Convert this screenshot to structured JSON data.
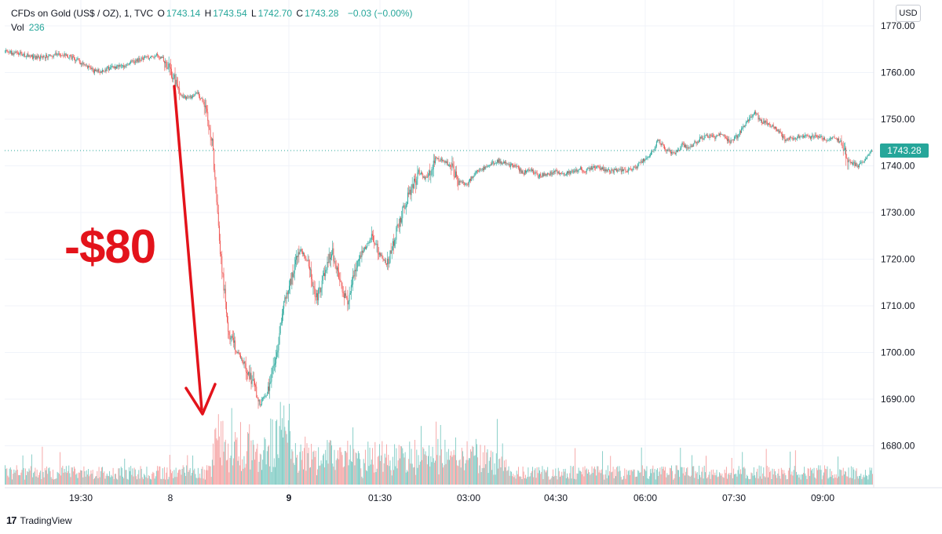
{
  "header": {
    "symbol_label": "CFDs on Gold (US$ / OZ), 1, TVC",
    "open_label": "O",
    "open_value": "1743.14",
    "high_label": "H",
    "high_value": "1743.54",
    "low_label": "L",
    "low_value": "1742.70",
    "close_label": "C",
    "close_value": "1743.28",
    "change": "−0.03 (−0.00%)",
    "volume_label": "Vol",
    "volume_value": "236"
  },
  "currency_button": "USD",
  "last_price_tag": "1743.28",
  "annotation": "-$80",
  "branding": {
    "name": "TradingView",
    "mark": "17"
  },
  "colors": {
    "up": "#26a69a",
    "down": "#ef5350",
    "vol_up": "#80cbc4",
    "vol_down": "#f5a3a3",
    "grid": "#f0f3fa",
    "annotation": "#e3131b",
    "axis_text": "#131722",
    "last_price_line": "#26a69a"
  },
  "chart_data": {
    "type": "candlestick",
    "title": "CFDs on Gold (US$ / OZ), 1, TVC",
    "timeframe": "1 minute",
    "ylabel": "USD",
    "ylim": [
      1672,
      1772
    ],
    "y_ticks": [
      1770,
      1760,
      1750,
      1740,
      1730,
      1720,
      1710,
      1700,
      1690,
      1680
    ],
    "y_tick_labels": [
      "1770.00",
      "1760.00",
      "1750.00",
      "1740.00",
      "1730.00",
      "1720.00",
      "1710.00",
      "1700.00",
      "1690.00",
      "1680.00"
    ],
    "x_tick_labels": [
      "19:30",
      "8",
      "9",
      "01:30",
      "03:00",
      "04:30",
      "06:00",
      "07:30",
      "09:00"
    ],
    "x_tick_bold": [
      false,
      false,
      true,
      false,
      false,
      false,
      false,
      false,
      false
    ],
    "x_tick_index": [
      15,
      35,
      60,
      80,
      100,
      120,
      140,
      160,
      180
    ],
    "last_price": 1743.28,
    "price_path": [
      1764.5,
      1764.2,
      1764.0,
      1763.5,
      1763.2,
      1763.5,
      1763.8,
      1763.9,
      1763.5,
      1762.8,
      1761.5,
      1760.4,
      1760.3,
      1760.9,
      1761.2,
      1761.5,
      1762.3,
      1762.8,
      1763.2,
      1763.6,
      1762.8,
      1759.5,
      1755.0,
      1754.5,
      1755.8,
      1753.5,
      1745.0,
      1722.0,
      1705.0,
      1700.5,
      1697.5,
      1694.0,
      1689.0,
      1691.5,
      1699.0,
      1710.0,
      1716.5,
      1722.0,
      1719.5,
      1711.0,
      1716.0,
      1722.0,
      1715.0,
      1710.0,
      1718.0,
      1722.0,
      1724.5,
      1721.0,
      1719.0,
      1725.0,
      1731.0,
      1735.0,
      1738.5,
      1737.0,
      1741.5,
      1741.0,
      1740.0,
      1736.5,
      1736.0,
      1738.5,
      1739.5,
      1740.5,
      1741.0,
      1740.3,
      1740.0,
      1738.5,
      1739.0,
      1737.8,
      1738.2,
      1738.8,
      1738.3,
      1738.6,
      1739.3,
      1739.0,
      1740.0,
      1739.3,
      1738.8,
      1739.2,
      1738.8,
      1739.5,
      1741.0,
      1742.5,
      1745.5,
      1743.5,
      1742.5,
      1744.5,
      1744.0,
      1745.5,
      1746.5,
      1746.0,
      1746.8,
      1745.0,
      1746.5,
      1749.0,
      1751.5,
      1749.5,
      1749.0,
      1747.5,
      1745.5,
      1746.0,
      1746.5,
      1746.0,
      1746.5,
      1745.5,
      1746.2,
      1745.0,
      1741.0,
      1740.0,
      1741.5,
      1743.28
    ],
    "volume_ylim": [
      0,
      180
    ],
    "volume_note": "per-bar volume, range approx 5-170"
  }
}
